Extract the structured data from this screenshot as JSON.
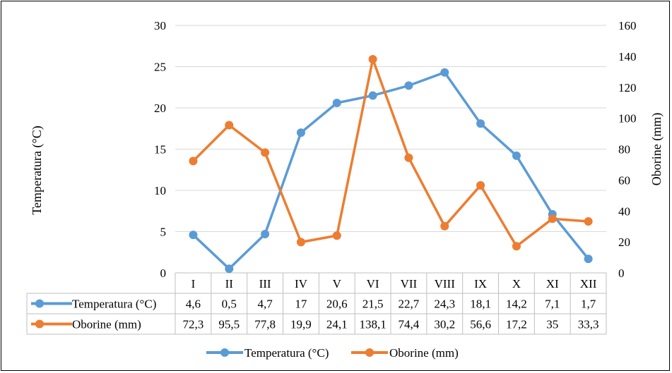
{
  "chart_data": {
    "type": "line",
    "categories": [
      "I",
      "II",
      "III",
      "IV",
      "V",
      "VI",
      "VII",
      "VIII",
      "IX",
      "X",
      "XI",
      "XII"
    ],
    "series": [
      {
        "name": "Temperatura (°C)",
        "axis": "left",
        "color": "#5B9BD5",
        "values": [
          4.6,
          0.5,
          4.7,
          17,
          20.6,
          21.5,
          22.7,
          24.3,
          18.1,
          14.2,
          7.1,
          1.7
        ],
        "labels": [
          "4,6",
          "0,5",
          "4,7",
          "17",
          "20,6",
          "21,5",
          "22,7",
          "24,3",
          "18,1",
          "14,2",
          "7,1",
          "1,7"
        ]
      },
      {
        "name": "Oborine (mm)",
        "axis": "right",
        "color": "#ED7D31",
        "values": [
          72.3,
          95.5,
          77.8,
          19.9,
          24.1,
          138.1,
          74.4,
          30.2,
          56.6,
          17.2,
          35,
          33.3
        ],
        "labels": [
          "72,3",
          "95,5",
          "77,8",
          "19,9",
          "24,1",
          "138,1",
          "74,4",
          "30,2",
          "56,6",
          "17,2",
          "35",
          "33,3"
        ]
      }
    ],
    "ylabel": "Temperatura (°C)",
    "y2label": "Oborine (mm)",
    "ylim": [
      0,
      30
    ],
    "y2lim": [
      0,
      160
    ],
    "yticks": [
      0,
      5,
      10,
      15,
      20,
      25,
      30
    ],
    "y2ticks": [
      0,
      20,
      40,
      60,
      80,
      100,
      120,
      140,
      160
    ],
    "grid": true,
    "data_table": true,
    "legend": "bottom"
  }
}
